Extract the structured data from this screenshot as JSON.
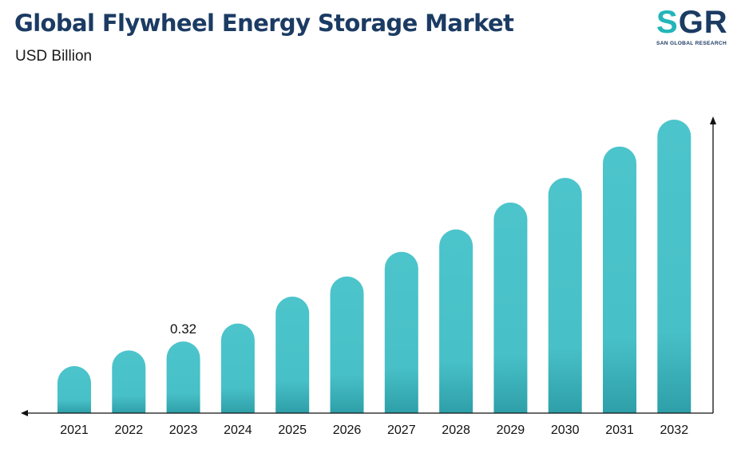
{
  "header": {
    "title": "Global Flywheel Energy Storage Market",
    "subtitle": "USD Billion"
  },
  "logo": {
    "mark": "SGR",
    "tagline": "SAN GLOBAL RESEARCH"
  },
  "colors": {
    "bar_top": "#4cc4cb",
    "bar_bottom": "#2e9fa8",
    "title": "#1b3b63",
    "logo_accent": "#23b5b9",
    "axis": "#111111"
  },
  "chart_data": {
    "type": "bar",
    "title": "Global Flywheel Energy Storage Market",
    "subtitle": "USD Billion",
    "categories": [
      "2021",
      "2022",
      "2023",
      "2024",
      "2025",
      "2026",
      "2027",
      "2028",
      "2029",
      "2030",
      "2031",
      "2032"
    ],
    "values": [
      0.21,
      0.28,
      0.32,
      0.4,
      0.52,
      0.61,
      0.72,
      0.82,
      0.94,
      1.05,
      1.19,
      1.31
    ],
    "data_labels": [
      null,
      null,
      "0.32",
      null,
      null,
      null,
      null,
      null,
      null,
      null,
      null,
      null
    ],
    "xlabel": "",
    "ylabel": "",
    "ylim": [
      0,
      1.31
    ],
    "grid": false,
    "legend": "none",
    "axes": "x-axis arrow pointing left, y-axis arrow pointing up on the right"
  }
}
